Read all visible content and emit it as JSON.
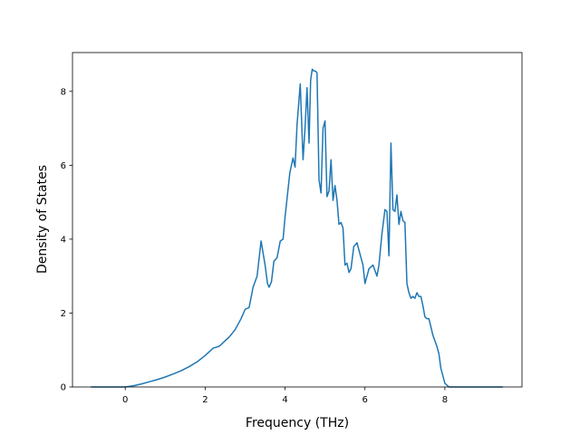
{
  "chart_data": {
    "type": "line",
    "title": "",
    "xlabel": "Frequency (THz)",
    "ylabel": "Density of States",
    "xlim": [
      -1.32,
      9.93
    ],
    "ylim": [
      0,
      9.05
    ],
    "xticks": [
      0,
      2,
      4,
      6,
      8
    ],
    "yticks": [
      0,
      2,
      4,
      6,
      8
    ],
    "grid": false,
    "legend": "none",
    "series": [
      {
        "color": "#1f77b4",
        "x": [
          -0.86,
          -0.6,
          -0.3,
          0.0,
          0.2,
          0.4,
          0.6,
          0.8,
          1.0,
          1.2,
          1.4,
          1.6,
          1.8,
          2.0,
          2.2,
          2.35,
          2.45,
          2.6,
          2.75,
          2.9,
          3.0,
          3.1,
          3.2,
          3.3,
          3.4,
          3.5,
          3.56,
          3.6,
          3.66,
          3.72,
          3.8,
          3.88,
          3.95,
          4.0,
          4.05,
          4.12,
          4.2,
          4.25,
          4.3,
          4.38,
          4.45,
          4.5,
          4.55,
          4.6,
          4.64,
          4.68,
          4.72,
          4.76,
          4.8,
          4.85,
          4.9,
          4.95,
          5.0,
          5.05,
          5.1,
          5.15,
          5.2,
          5.25,
          5.3,
          5.35,
          5.4,
          5.45,
          5.5,
          5.55,
          5.6,
          5.65,
          5.72,
          5.8,
          5.85,
          5.9,
          5.95,
          6.0,
          6.1,
          6.2,
          6.3,
          6.35,
          6.42,
          6.5,
          6.55,
          6.6,
          6.65,
          6.7,
          6.75,
          6.8,
          6.85,
          6.9,
          6.95,
          7.0,
          7.05,
          7.1,
          7.15,
          7.2,
          7.25,
          7.3,
          7.35,
          7.4,
          7.45,
          7.5,
          7.55,
          7.6,
          7.7,
          7.8,
          7.85,
          7.9,
          8.0,
          8.1,
          8.15,
          8.2,
          8.3,
          8.4,
          8.5,
          8.55,
          8.6,
          8.65,
          8.8,
          9.0,
          9.2,
          9.45
        ],
        "y": [
          0,
          0,
          0,
          0,
          0.03,
          0.08,
          0.14,
          0.2,
          0.27,
          0.35,
          0.44,
          0.55,
          0.68,
          0.85,
          1.05,
          1.1,
          1.2,
          1.35,
          1.55,
          1.85,
          2.1,
          2.15,
          2.7,
          3.0,
          3.95,
          3.3,
          2.8,
          2.7,
          2.85,
          3.4,
          3.5,
          3.95,
          4.0,
          4.6,
          5.1,
          5.8,
          6.2,
          5.95,
          7.1,
          8.2,
          6.15,
          7.0,
          8.1,
          6.6,
          8.3,
          8.6,
          8.55,
          8.55,
          8.5,
          5.6,
          5.25,
          7.0,
          7.2,
          5.15,
          5.3,
          6.15,
          5.05,
          5.45,
          5.05,
          4.4,
          4.45,
          4.3,
          3.3,
          3.35,
          3.1,
          3.2,
          3.8,
          3.9,
          3.7,
          3.5,
          3.3,
          2.8,
          3.2,
          3.3,
          3.0,
          3.3,
          4.1,
          4.8,
          4.75,
          3.55,
          6.6,
          4.8,
          4.75,
          5.2,
          4.4,
          4.75,
          4.5,
          4.45,
          2.8,
          2.55,
          2.4,
          2.45,
          2.4,
          2.55,
          2.45,
          2.45,
          2.2,
          1.9,
          1.85,
          1.85,
          1.4,
          1.1,
          0.9,
          0.5,
          0.1,
          0,
          0,
          0,
          0,
          0,
          0,
          0,
          0,
          0,
          0,
          0,
          0,
          0
        ]
      }
    ]
  }
}
